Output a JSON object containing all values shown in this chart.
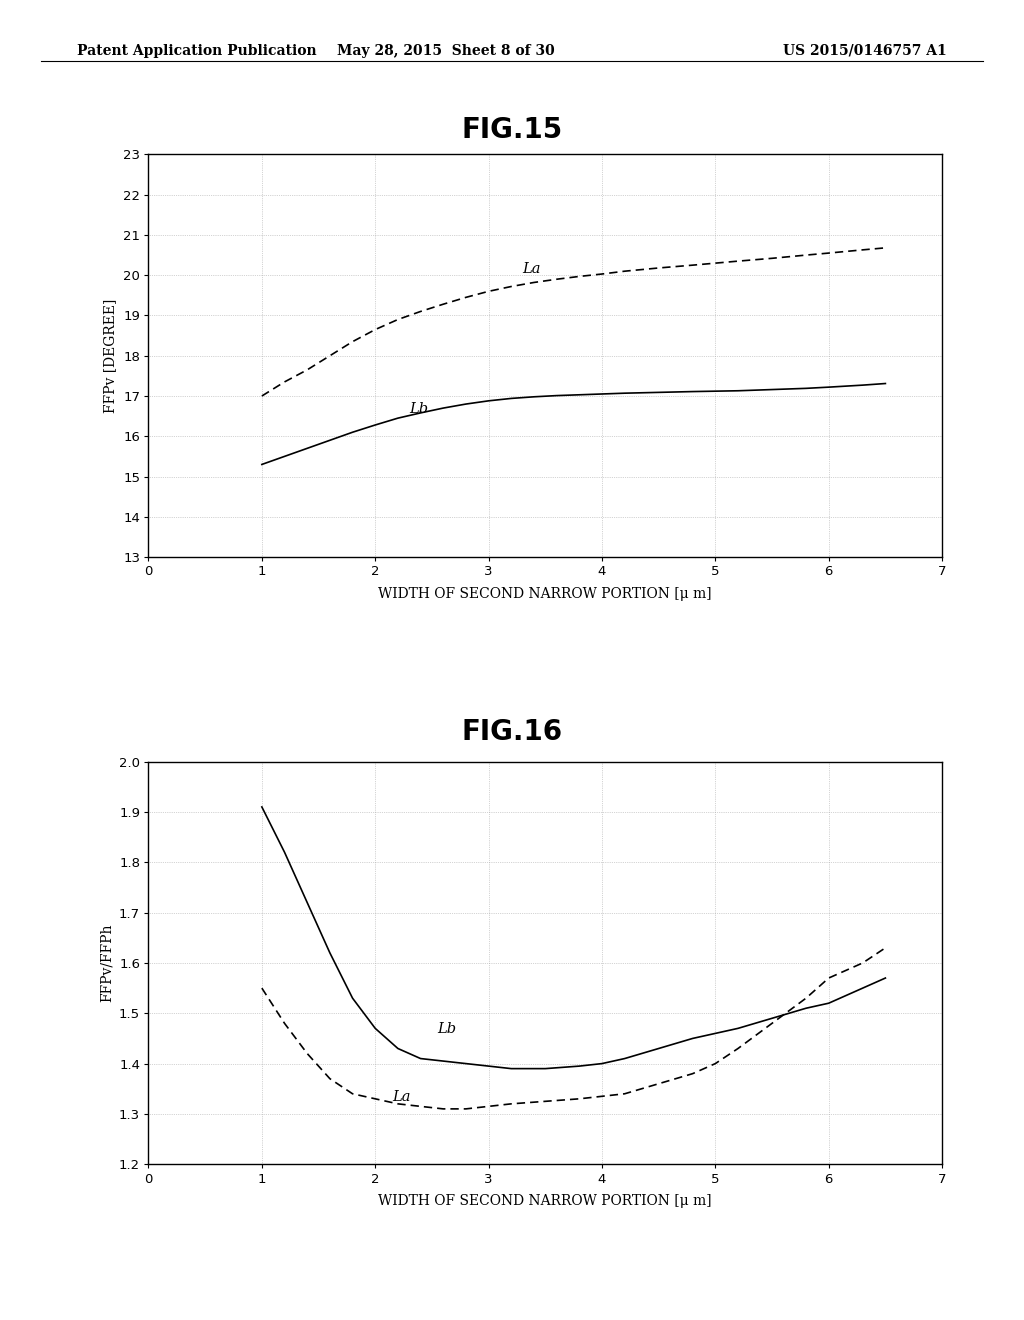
{
  "header_left": "Patent Application Publication",
  "header_center": "May 28, 2015  Sheet 8 of 30",
  "header_right": "US 2015/0146757 A1",
  "fig15_title": "FIG.15",
  "fig16_title": "FIG.16",
  "xlabel": "WIDTH OF SECOND NARROW PORTION [μ m]",
  "fig15_ylabel": "FFPv [DEGREE]",
  "fig16_ylabel": "FFPv/FFPh",
  "fig15_xlim": [
    0,
    7
  ],
  "fig15_ylim": [
    13,
    23
  ],
  "fig15_yticks": [
    13,
    14,
    15,
    16,
    17,
    18,
    19,
    20,
    21,
    22,
    23
  ],
  "fig15_xticks": [
    0,
    1,
    2,
    3,
    4,
    5,
    6,
    7
  ],
  "fig16_xlim": [
    0,
    7
  ],
  "fig16_ylim": [
    1.2,
    2.0
  ],
  "fig16_yticks": [
    1.2,
    1.3,
    1.4,
    1.5,
    1.6,
    1.7,
    1.8,
    1.9,
    2.0
  ],
  "fig16_xticks": [
    0,
    1,
    2,
    3,
    4,
    5,
    6,
    7
  ],
  "fig15_La_x": [
    1.0,
    1.2,
    1.4,
    1.6,
    1.8,
    2.0,
    2.2,
    2.4,
    2.6,
    2.8,
    3.0,
    3.2,
    3.4,
    3.6,
    3.8,
    4.0,
    4.2,
    4.5,
    4.8,
    5.0,
    5.2,
    5.5,
    5.8,
    6.0,
    6.3,
    6.5
  ],
  "fig15_La_y": [
    17.0,
    17.35,
    17.65,
    18.0,
    18.35,
    18.65,
    18.9,
    19.1,
    19.28,
    19.45,
    19.6,
    19.72,
    19.82,
    19.9,
    19.97,
    20.03,
    20.1,
    20.18,
    20.25,
    20.3,
    20.35,
    20.42,
    20.5,
    20.55,
    20.63,
    20.68
  ],
  "fig15_Lb_x": [
    1.0,
    1.2,
    1.4,
    1.6,
    1.8,
    2.0,
    2.2,
    2.4,
    2.6,
    2.8,
    3.0,
    3.2,
    3.4,
    3.6,
    3.8,
    4.0,
    4.2,
    4.5,
    4.8,
    5.0,
    5.2,
    5.5,
    5.8,
    6.0,
    6.3,
    6.5
  ],
  "fig15_Lb_y": [
    15.3,
    15.5,
    15.7,
    15.9,
    16.1,
    16.28,
    16.45,
    16.58,
    16.7,
    16.8,
    16.88,
    16.94,
    16.98,
    17.01,
    17.03,
    17.05,
    17.07,
    17.09,
    17.11,
    17.12,
    17.13,
    17.16,
    17.19,
    17.22,
    17.27,
    17.31
  ],
  "fig16_Lb_x": [
    1.0,
    1.2,
    1.4,
    1.6,
    1.8,
    2.0,
    2.2,
    2.4,
    2.6,
    2.8,
    3.0,
    3.2,
    3.5,
    3.8,
    4.0,
    4.2,
    4.5,
    4.8,
    5.0,
    5.2,
    5.5,
    5.8,
    6.0,
    6.3,
    6.5
  ],
  "fig16_Lb_y": [
    1.91,
    1.82,
    1.72,
    1.62,
    1.53,
    1.47,
    1.43,
    1.41,
    1.405,
    1.4,
    1.395,
    1.39,
    1.39,
    1.395,
    1.4,
    1.41,
    1.43,
    1.45,
    1.46,
    1.47,
    1.49,
    1.51,
    1.52,
    1.55,
    1.57
  ],
  "fig16_La_x": [
    1.0,
    1.2,
    1.4,
    1.6,
    1.8,
    2.0,
    2.2,
    2.4,
    2.6,
    2.8,
    3.0,
    3.2,
    3.5,
    3.8,
    4.0,
    4.2,
    4.5,
    4.8,
    5.0,
    5.2,
    5.5,
    5.8,
    6.0,
    6.3,
    6.5
  ],
  "fig16_La_y": [
    1.55,
    1.48,
    1.42,
    1.37,
    1.34,
    1.33,
    1.32,
    1.315,
    1.31,
    1.31,
    1.315,
    1.32,
    1.325,
    1.33,
    1.335,
    1.34,
    1.36,
    1.38,
    1.4,
    1.43,
    1.48,
    1.53,
    1.57,
    1.6,
    1.63
  ],
  "line_color": "#000000",
  "bg_color": "#ffffff",
  "grid_color": "#aaaaaa"
}
